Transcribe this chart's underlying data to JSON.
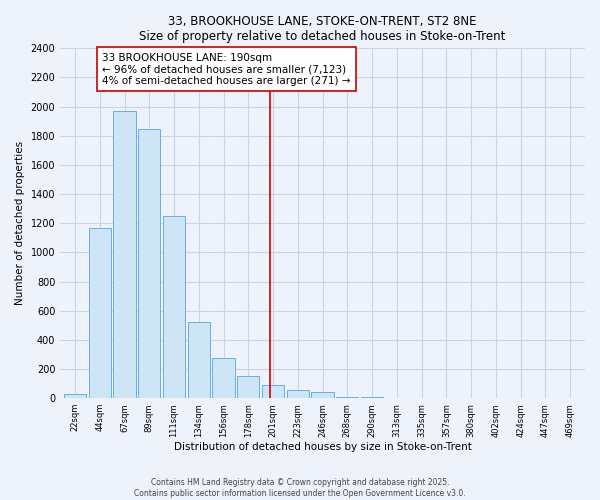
{
  "title1": "33, BROOKHOUSE LANE, STOKE-ON-TRENT, ST2 8NE",
  "title2": "Size of property relative to detached houses in Stoke-on-Trent",
  "xlabel": "Distribution of detached houses by size in Stoke-on-Trent",
  "ylabel": "Number of detached properties",
  "bar_labels": [
    "22sqm",
    "44sqm",
    "67sqm",
    "89sqm",
    "111sqm",
    "134sqm",
    "156sqm",
    "178sqm",
    "201sqm",
    "223sqm",
    "246sqm",
    "268sqm",
    "290sqm",
    "313sqm",
    "335sqm",
    "357sqm",
    "380sqm",
    "402sqm",
    "424sqm",
    "447sqm",
    "469sqm"
  ],
  "bar_values": [
    30,
    1170,
    1970,
    1850,
    1250,
    520,
    275,
    150,
    90,
    55,
    40,
    10,
    5,
    2,
    1,
    0,
    0,
    0,
    0,
    0,
    0
  ],
  "bar_color": "#cde5f5",
  "bar_edge_color": "#6aade4",
  "vline_x": 7.88,
  "vline_color": "#cc0000",
  "annotation_line1": "33 BROOKHOUSE LANE: 190sqm",
  "annotation_line2": "← 96% of detached houses are smaller (7,123)",
  "annotation_line3": "4% of semi-detached houses are larger (271) →",
  "annotation_box_color": "#ffffff",
  "annotation_box_edge": "#cc0000",
  "ylim": [
    0,
    2400
  ],
  "yticks": [
    0,
    200,
    400,
    600,
    800,
    1000,
    1200,
    1400,
    1600,
    1800,
    2000,
    2200,
    2400
  ],
  "background_color": "#eef2fb",
  "grid_color": "#c8d4e8",
  "footer1": "Contains HM Land Registry data © Crown copyright and database right 2025.",
  "footer2": "Contains public sector information licensed under the Open Government Licence v3.0."
}
